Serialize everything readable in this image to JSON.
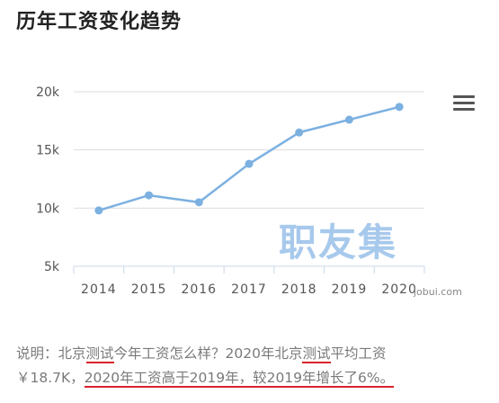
{
  "title": "历年工资变化趋势",
  "watermark": "职友集",
  "source": "jobui.com",
  "menu_icon": "hamburger-menu-icon",
  "colors": {
    "line": "#7cb0e1",
    "grid": "#dddddd",
    "underline": "#d9232a"
  },
  "description": {
    "p1": "说明：北京",
    "u1": "测试",
    "p2": "今年工资怎么样？2020年北京",
    "u2": "测试",
    "p3": "平均工资",
    "p4": "￥18.7K，",
    "u3": "2020年工资高于2019年，较2019年增长了6%。"
  },
  "chart_data": {
    "type": "line",
    "categories": [
      "2014",
      "2015",
      "2016",
      "2017",
      "2018",
      "2019",
      "2020"
    ],
    "series": [
      {
        "values": [
          9.8,
          11.1,
          10.5,
          13.8,
          16.5,
          17.6,
          18.7
        ]
      }
    ],
    "y_ticks": [
      "5k",
      "10k",
      "15k",
      "20k"
    ],
    "y_tick_values": [
      5,
      10,
      15,
      20
    ],
    "ylim": [
      5,
      20
    ],
    "grid": true
  }
}
